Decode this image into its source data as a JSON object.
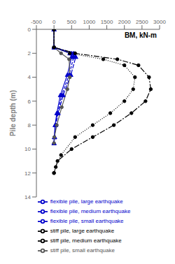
{
  "chart_data": {
    "type": "line",
    "title": "BM, kN-m",
    "ylabel": "Pile depth (m)",
    "xlim": [
      -500,
      3000
    ],
    "ylim": [
      14,
      0
    ],
    "xticks": [
      -500,
      0,
      500,
      1000,
      1500,
      2000,
      2500,
      3000
    ],
    "yticks": [
      0,
      2,
      4,
      6,
      8,
      10,
      12,
      14
    ],
    "legend": "bottom",
    "series": [
      {
        "name": "flexible pile, small earthquake",
        "color": "#0000cc",
        "line_style": "solid",
        "marker": "triangle",
        "x": [
          0,
          0,
          450,
          500,
          380,
          180,
          80,
          30,
          10,
          0
        ],
        "values": [
          0,
          1.5,
          2.0,
          2.3,
          3.8,
          5.5,
          7.0,
          8.0,
          9.0,
          9.5
        ]
      },
      {
        "name": "flexible pile, medium earthquake",
        "color": "#0000cc",
        "line_style": "dashed",
        "marker": "triangle",
        "x": [
          0,
          0,
          500,
          560,
          430,
          220,
          100,
          40,
          15,
          0
        ],
        "values": [
          0,
          1.5,
          2.0,
          2.3,
          3.8,
          5.5,
          7.0,
          8.0,
          9.0,
          9.5
        ]
      },
      {
        "name": "flexible pile, large earthquake",
        "color": "#0000cc",
        "line_style": "long_dashed",
        "marker": "triangle",
        "x": [
          0,
          0,
          560,
          620,
          480,
          260,
          120,
          50,
          20,
          0
        ],
        "values": [
          0,
          1.5,
          2.0,
          2.3,
          3.8,
          5.5,
          7.0,
          8.0,
          9.0,
          9.5
        ]
      },
      {
        "name": "stiff pile, small earthquake",
        "color": "#555555",
        "line_style": "solid",
        "marker": "circle",
        "x": [
          0,
          0,
          200,
          430,
          450,
          380,
          220,
          80,
          10,
          0
        ],
        "values": [
          0,
          1.5,
          2.0,
          2.5,
          4.0,
          5.0,
          6.5,
          8.0,
          9.0,
          9.5
        ]
      },
      {
        "name": "stiff pile, medium earthquake",
        "color": "#000000",
        "line_style": "dotted",
        "marker": "circle",
        "x": [
          0,
          0,
          450,
          1400,
          2000,
          2300,
          2250,
          2000,
          1600,
          1100,
          600,
          200,
          50,
          0
        ],
        "values": [
          0,
          1.5,
          2.0,
          2.5,
          3.0,
          4.0,
          5.0,
          6.0,
          7.0,
          8.0,
          9.0,
          10.5,
          11.5,
          12.0
        ]
      },
      {
        "name": "stiff pile, large earthquake",
        "color": "#000000",
        "line_style": "dashdot",
        "marker": "circle",
        "x": [
          0,
          0,
          600,
          1800,
          2400,
          2700,
          2750,
          2600,
          2200,
          1700,
          1100,
          500,
          100,
          0
        ],
        "values": [
          0,
          1.5,
          2.0,
          2.5,
          3.0,
          4.0,
          5.0,
          6.0,
          7.0,
          8.0,
          9.0,
          10.0,
          11.0,
          12.0
        ]
      }
    ]
  }
}
